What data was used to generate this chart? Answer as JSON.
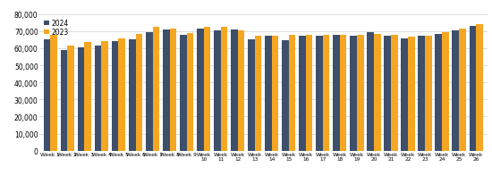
{
  "weeks": [
    "Week 1",
    "Week 2",
    "Week 3",
    "Week 4",
    "Week 5",
    "Week 6",
    "Week 7",
    "Week 8",
    "Week 9",
    "Week\n10",
    "Week\n11",
    "Week\n12",
    "Week\n13",
    "Week\n14",
    "Week\n15",
    "Week\n16",
    "Week\n17",
    "Week\n18",
    "Week\n19",
    "Week\n20",
    "Week\n21",
    "Week\n22",
    "Week\n23",
    "Week\n24",
    "Week\n25",
    "Week\n26"
  ],
  "values_2024": [
    65000,
    59000,
    60500,
    61500,
    64000,
    65000,
    69500,
    71000,
    67500,
    71500,
    70500,
    71000,
    65000,
    67000,
    64500,
    67000,
    67000,
    67500,
    67000,
    69500,
    67000,
    65500,
    67000,
    68500,
    70500,
    73000
  ],
  "values_2023": [
    68000,
    61500,
    63500,
    64000,
    65500,
    68500,
    72500,
    71500,
    69000,
    72500,
    72500,
    70500,
    67000,
    67000,
    68000,
    67500,
    67500,
    68000,
    67500,
    68500,
    67500,
    66500,
    67000,
    69500,
    71500,
    74000
  ],
  "color_2024": "#3d4f6b",
  "color_2023": "#f5a623",
  "ylim": [
    0,
    80000
  ],
  "yticks": [
    0,
    10000,
    20000,
    30000,
    40000,
    50000,
    60000,
    70000,
    80000
  ],
  "background_color": "#ffffff",
  "grid_color": "#d0d0d0"
}
